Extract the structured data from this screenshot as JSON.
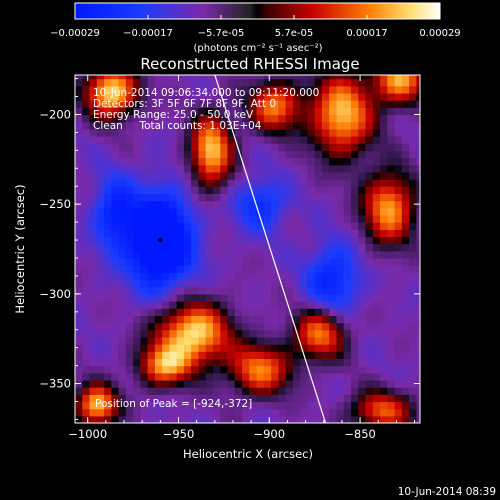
{
  "chart_data": {
    "type": "heatmap",
    "title": "Reconstructed RHESSI Image",
    "colorbar": {
      "ticks": [
        "-0.00029",
        "-0.00017",
        "-5.7e-05",
        "5.7e-05",
        "0.00017",
        "0.00029"
      ],
      "unit_text": "(photons cm⁻² s⁻¹ asec⁻²)",
      "range": [
        -0.00029,
        0.00029
      ]
    },
    "info_lines": [
      "10-Jun-2014 09:06:34.000 to 09:11:20.000",
      "Detectors: 3F 5F 6F 7F 8F 9F, Att 0",
      "Energy Range: 25.0 - 50.0 keV",
      "Clean     Total counts: 1.03E+04"
    ],
    "peak_text": "Position of Peak = [-924,-372]",
    "peak": [
      -924,
      -372
    ],
    "min_marker": [
      -960,
      -270
    ],
    "limb_line": [
      [
        -930,
        -178
      ],
      [
        -869,
        -372
      ]
    ],
    "xlabel": "Heliocentric X (arcsec)",
    "ylabel": "Heliocentric Y (arcsec)",
    "x_ticks": [
      -1000,
      -950,
      -900,
      -850
    ],
    "x_tick_labels": [
      "−1000",
      "−950",
      "−900",
      "−850"
    ],
    "y_ticks": [
      -200,
      -250,
      -300,
      -350
    ],
    "y_tick_labels": [
      "−200",
      "−250",
      "−300",
      "−350"
    ],
    "xlim": [
      -1007,
      -817
    ],
    "ylim": [
      -372,
      -178
    ],
    "blobs": [
      {
        "x": -987,
        "y": -187,
        "sx": 10,
        "sy": 10,
        "a": 0.6
      },
      {
        "x": -932,
        "y": -220,
        "sx": 8,
        "sy": 14,
        "a": 0.55
      },
      {
        "x": -897,
        "y": -195,
        "sx": 10,
        "sy": 10,
        "a": 0.45
      },
      {
        "x": -860,
        "y": -200,
        "sx": 12,
        "sy": 16,
        "a": 0.55
      },
      {
        "x": -828,
        "y": -180,
        "sx": 10,
        "sy": 10,
        "a": 0.5
      },
      {
        "x": -834,
        "y": -252,
        "sx": 10,
        "sy": 14,
        "a": 0.5
      },
      {
        "x": -942,
        "y": -322,
        "sx": 14,
        "sy": 12,
        "a": 0.6
      },
      {
        "x": -958,
        "y": -340,
        "sx": 10,
        "sy": 8,
        "a": 0.45
      },
      {
        "x": -905,
        "y": -342,
        "sx": 12,
        "sy": 10,
        "a": 0.45
      },
      {
        "x": -995,
        "y": -362,
        "sx": 8,
        "sy": 8,
        "a": 0.55
      },
      {
        "x": -872,
        "y": -322,
        "sx": 10,
        "sy": 10,
        "a": 0.45
      },
      {
        "x": -838,
        "y": -365,
        "sx": 12,
        "sy": 8,
        "a": 0.4
      },
      {
        "x": -960,
        "y": -270,
        "sx": 12,
        "sy": 18,
        "a": -0.6
      },
      {
        "x": -985,
        "y": -255,
        "sx": 8,
        "sy": 14,
        "a": -0.3
      },
      {
        "x": -865,
        "y": -292,
        "sx": 10,
        "sy": 14,
        "a": -0.3
      },
      {
        "x": -905,
        "y": -250,
        "sx": 10,
        "sy": 10,
        "a": -0.25
      }
    ]
  },
  "timestamp": "10-Jun-2014 08:39"
}
